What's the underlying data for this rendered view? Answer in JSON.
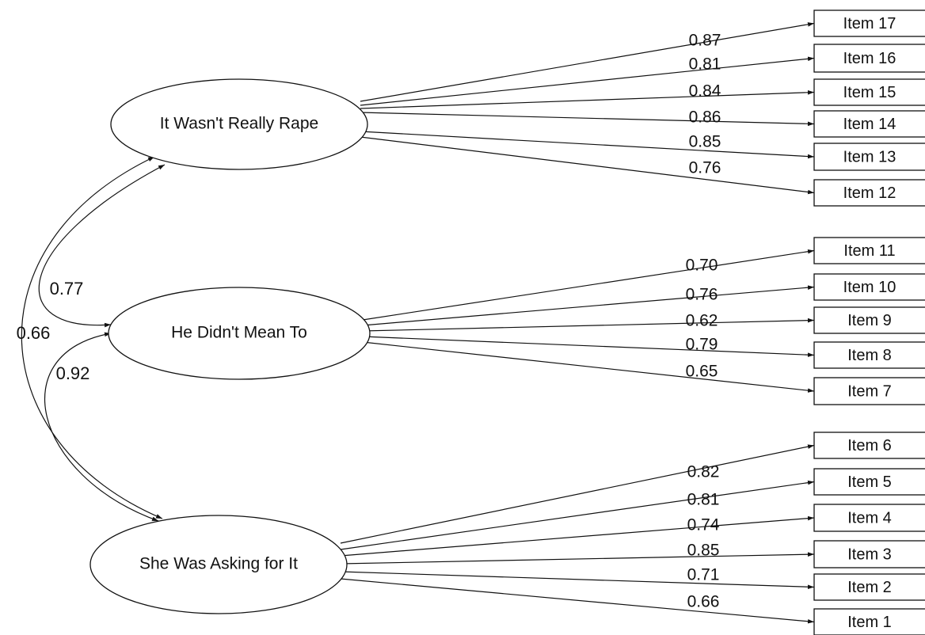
{
  "factors": [
    {
      "id": "f1",
      "label": "It Wasn't Really Rape"
    },
    {
      "id": "f2",
      "label": "He Didn't Mean To"
    },
    {
      "id": "f3",
      "label": "She Was Asking for It"
    }
  ],
  "items": [
    {
      "label": "Item 17",
      "factor": "f1",
      "loading": "0.87"
    },
    {
      "label": "Item 16",
      "factor": "f1",
      "loading": "0.81"
    },
    {
      "label": "Item 15",
      "factor": "f1",
      "loading": "0.84"
    },
    {
      "label": "Item 14",
      "factor": "f1",
      "loading": "0.86"
    },
    {
      "label": "Item 13",
      "factor": "f1",
      "loading": "0.85"
    },
    {
      "label": "Item 12",
      "factor": "f1",
      "loading": "0.76"
    },
    {
      "label": "Item 11",
      "factor": "f2",
      "loading": "0.70"
    },
    {
      "label": "Item 10",
      "factor": "f2",
      "loading": "0.76"
    },
    {
      "label": "Item 9",
      "factor": "f2",
      "loading": "0.62"
    },
    {
      "label": "Item 8",
      "factor": "f2",
      "loading": "0.79"
    },
    {
      "label": "Item 7",
      "factor": "f2",
      "loading": "0.65"
    },
    {
      "label": "Item 6",
      "factor": "f3",
      "loading": "0.82"
    },
    {
      "label": "Item 5",
      "factor": "f3",
      "loading": "0.81"
    },
    {
      "label": "Item 4",
      "factor": "f3",
      "loading": "0.74"
    },
    {
      "label": "Item 3",
      "factor": "f3",
      "loading": "0.85"
    },
    {
      "label": "Item 2",
      "factor": "f3",
      "loading": "0.71"
    },
    {
      "label": "Item 1",
      "factor": "f3",
      "loading": "0.66"
    }
  ],
  "correlations": [
    {
      "from": "f1",
      "to": "f2",
      "value": "0.77"
    },
    {
      "from": "f2",
      "to": "f3",
      "value": "0.92"
    },
    {
      "from": "f1",
      "to": "f3",
      "value": "0.66"
    }
  ]
}
